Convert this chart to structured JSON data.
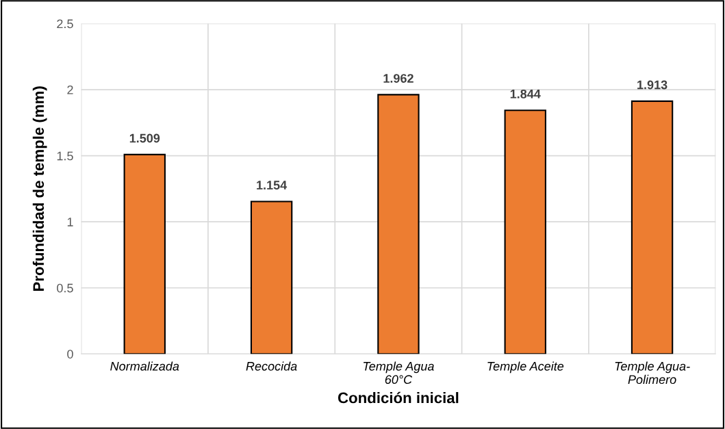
{
  "chart_data": {
    "type": "bar",
    "xlabel": "Condición inicial",
    "ylabel": "Profundidad de temple (mm)",
    "categories": [
      "Normalizada",
      "Recocida",
      "Temple Agua\n60°C",
      "Temple Aceite",
      "Temple Agua-\nPolimero"
    ],
    "values": [
      1.509,
      1.154,
      1.962,
      1.844,
      1.913
    ],
    "color": "#ed7d31",
    "ylim": [
      0,
      2.5
    ],
    "yticks": [
      0,
      0.5,
      1,
      1.5,
      2,
      2.5
    ],
    "grid": true,
    "data_labels": true
  }
}
